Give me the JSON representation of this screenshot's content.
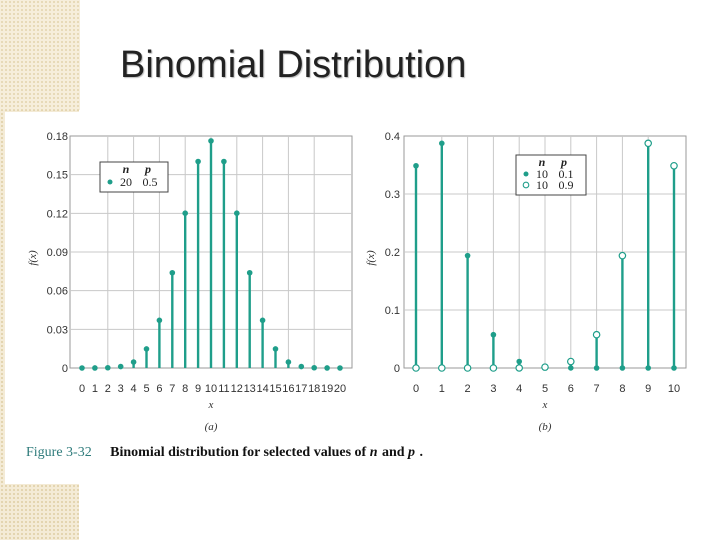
{
  "slide": {
    "title": "Binomial Distribution"
  },
  "colors": {
    "teal": "#1f9e8a",
    "grid": "#c8c8c8",
    "background_pattern": "#f4ebd6"
  },
  "caption": {
    "number": "Figure 3-32",
    "text": "Binomial distribution for selected values of ",
    "n": "n",
    "and": " and ",
    "p": "p",
    "end": "."
  },
  "chart_data": [
    {
      "type": "stem",
      "sublabel": "(a)",
      "xlabel": "x",
      "ylabel": "f(x)",
      "xlim": [
        0,
        20
      ],
      "ylim": [
        0,
        0.18
      ],
      "x_ticks": [
        "0",
        "1",
        "2",
        "3",
        "4",
        "5",
        "6",
        "7",
        "8",
        "9",
        "10",
        "11",
        "12",
        "13",
        "14",
        "15",
        "16",
        "17",
        "18",
        "19",
        "20"
      ],
      "y_ticks": [
        "0",
        "0.03",
        "0.06",
        "0.09",
        "0.12",
        "0.15",
        "0.18"
      ],
      "y_tick_values": [
        0,
        0.03,
        0.06,
        0.09,
        0.12,
        0.15,
        0.18
      ],
      "grid": true,
      "legend_position": "top-left",
      "legend": {
        "headers": [
          "n",
          "p"
        ],
        "rows": [
          {
            "marker": "filled",
            "n": "20",
            "p": "0.5"
          }
        ]
      },
      "series": [
        {
          "marker": "filled",
          "x": [
            0,
            1,
            2,
            3,
            4,
            5,
            6,
            7,
            8,
            9,
            10,
            11,
            12,
            13,
            14,
            15,
            16,
            17,
            18,
            19,
            20
          ],
          "values": [
            1e-06,
            2e-05,
            0.0002,
            0.0011,
            0.0046,
            0.0148,
            0.037,
            0.0739,
            0.1201,
            0.1602,
            0.1762,
            0.1602,
            0.1201,
            0.0739,
            0.037,
            0.0148,
            0.0046,
            0.0011,
            0.0002,
            2e-05,
            1e-06
          ]
        }
      ]
    },
    {
      "type": "stem",
      "sublabel": "(b)",
      "xlabel": "x",
      "ylabel": "f(x)",
      "xlim": [
        0,
        10
      ],
      "ylim": [
        0,
        0.4
      ],
      "x_ticks": [
        "0",
        "1",
        "2",
        "3",
        "4",
        "5",
        "6",
        "7",
        "8",
        "9",
        "10"
      ],
      "y_ticks": [
        "0",
        "0.1",
        "0.2",
        "0.3",
        "0.4"
      ],
      "y_tick_values": [
        0,
        0.1,
        0.2,
        0.3,
        0.4
      ],
      "grid": true,
      "legend_position": "top-right",
      "legend": {
        "headers": [
          "n",
          "p"
        ],
        "rows": [
          {
            "marker": "filled",
            "n": "10",
            "p": "0.1"
          },
          {
            "marker": "open",
            "n": "10",
            "p": "0.9"
          }
        ]
      },
      "series": [
        {
          "marker": "filled",
          "x": [
            0,
            1,
            2,
            3,
            4,
            5,
            6,
            7,
            8,
            9,
            10
          ],
          "values": [
            0.3487,
            0.3874,
            0.1937,
            0.0574,
            0.0112,
            0.0015,
            0.0001,
            0.0,
            0.0,
            0.0,
            0.0
          ]
        },
        {
          "marker": "open",
          "x": [
            0,
            1,
            2,
            3,
            4,
            5,
            6,
            7,
            8,
            9,
            10
          ],
          "values": [
            0.0,
            0.0,
            0.0,
            0.0,
            0.0001,
            0.0015,
            0.0112,
            0.0574,
            0.1937,
            0.3874,
            0.3487
          ]
        }
      ]
    }
  ]
}
